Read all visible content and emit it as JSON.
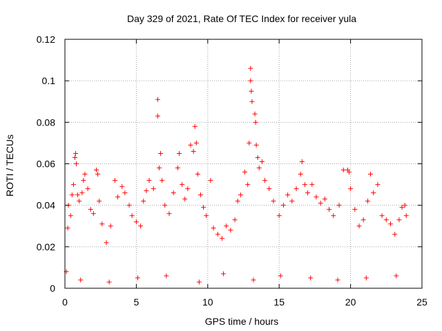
{
  "chart_data": {
    "type": "scatter",
    "title": "Day 329 of 2021, Rate Of TEC Index for receiver yula",
    "xlabel": "GPS time / hours",
    "ylabel": "ROTI / TECUs",
    "xlim": [
      0,
      25
    ],
    "ylim": [
      0,
      0.12
    ],
    "xticks": [
      0,
      5,
      10,
      15,
      20,
      25
    ],
    "yticks": [
      0,
      0.02,
      0.04,
      0.06,
      0.08,
      0.1,
      0.12
    ],
    "xtick_labels": [
      "0",
      "5",
      "10",
      "15",
      "20",
      "25"
    ],
    "ytick_labels": [
      "0",
      "0.02",
      "0.04",
      "0.06",
      "0.08",
      "0.1",
      "0.12"
    ],
    "grid": true,
    "marker": "+",
    "color": "#ff0000",
    "series": [
      {
        "name": "ROTI",
        "points": [
          [
            0.1,
            0.008
          ],
          [
            0.2,
            0.029
          ],
          [
            0.25,
            0.04
          ],
          [
            0.4,
            0.035
          ],
          [
            0.5,
            0.045
          ],
          [
            0.6,
            0.05
          ],
          [
            0.7,
            0.063
          ],
          [
            0.75,
            0.065
          ],
          [
            0.8,
            0.06
          ],
          [
            0.9,
            0.045
          ],
          [
            1.0,
            0.042
          ],
          [
            1.2,
            0.046
          ],
          [
            1.3,
            0.052
          ],
          [
            1.4,
            0.055
          ],
          [
            1.6,
            0.048
          ],
          [
            1.8,
            0.038
          ],
          [
            2.0,
            0.036
          ],
          [
            2.2,
            0.057
          ],
          [
            2.3,
            0.055
          ],
          [
            2.4,
            0.042
          ],
          [
            2.6,
            0.031
          ],
          [
            2.9,
            0.022
          ],
          [
            3.2,
            0.03
          ],
          [
            3.5,
            0.052
          ],
          [
            3.7,
            0.044
          ],
          [
            4.0,
            0.049
          ],
          [
            4.2,
            0.046
          ],
          [
            4.5,
            0.04
          ],
          [
            4.7,
            0.035
          ],
          [
            5.0,
            0.032
          ],
          [
            5.3,
            0.03
          ],
          [
            5.5,
            0.042
          ],
          [
            5.7,
            0.047
          ],
          [
            5.9,
            0.052
          ],
          [
            6.2,
            0.048
          ],
          [
            6.5,
            0.091
          ],
          [
            6.5,
            0.083
          ],
          [
            6.6,
            0.058
          ],
          [
            6.7,
            0.065
          ],
          [
            6.8,
            0.052
          ],
          [
            7.0,
            0.04
          ],
          [
            7.3,
            0.036
          ],
          [
            7.6,
            0.046
          ],
          [
            7.9,
            0.058
          ],
          [
            8.0,
            0.065
          ],
          [
            8.2,
            0.05
          ],
          [
            8.4,
            0.043
          ],
          [
            8.6,
            0.048
          ],
          [
            8.8,
            0.069
          ],
          [
            9.0,
            0.066
          ],
          [
            9.1,
            0.078
          ],
          [
            9.2,
            0.07
          ],
          [
            9.3,
            0.055
          ],
          [
            9.5,
            0.045
          ],
          [
            9.7,
            0.039
          ],
          [
            9.9,
            0.035
          ],
          [
            10.2,
            0.052
          ],
          [
            10.4,
            0.029
          ],
          [
            10.7,
            0.026
          ],
          [
            11.0,
            0.024
          ],
          [
            11.3,
            0.03
          ],
          [
            11.6,
            0.028
          ],
          [
            11.9,
            0.033
          ],
          [
            12.1,
            0.042
          ],
          [
            12.3,
            0.045
          ],
          [
            12.6,
            0.056
          ],
          [
            12.8,
            0.05
          ],
          [
            12.9,
            0.07
          ],
          [
            13.0,
            0.106
          ],
          [
            13.0,
            0.1
          ],
          [
            13.05,
            0.095
          ],
          [
            13.1,
            0.09
          ],
          [
            13.3,
            0.084
          ],
          [
            13.35,
            0.08
          ],
          [
            13.4,
            0.069
          ],
          [
            13.5,
            0.063
          ],
          [
            13.6,
            0.058
          ],
          [
            13.8,
            0.061
          ],
          [
            14.0,
            0.052
          ],
          [
            14.3,
            0.048
          ],
          [
            14.6,
            0.042
          ],
          [
            15.0,
            0.035
          ],
          [
            15.3,
            0.04
          ],
          [
            15.6,
            0.045
          ],
          [
            15.9,
            0.042
          ],
          [
            16.2,
            0.048
          ],
          [
            16.5,
            0.055
          ],
          [
            16.6,
            0.061
          ],
          [
            16.8,
            0.05
          ],
          [
            17.0,
            0.046
          ],
          [
            17.3,
            0.05
          ],
          [
            17.6,
            0.044
          ],
          [
            17.9,
            0.041
          ],
          [
            18.2,
            0.043
          ],
          [
            18.5,
            0.038
          ],
          [
            18.8,
            0.035
          ],
          [
            19.2,
            0.04
          ],
          [
            19.5,
            0.057
          ],
          [
            19.8,
            0.057
          ],
          [
            19.9,
            0.056
          ],
          [
            20.0,
            0.048
          ],
          [
            20.3,
            0.038
          ],
          [
            20.6,
            0.03
          ],
          [
            20.9,
            0.033
          ],
          [
            21.2,
            0.042
          ],
          [
            21.4,
            0.055
          ],
          [
            21.6,
            0.046
          ],
          [
            21.9,
            0.05
          ],
          [
            22.2,
            0.035
          ],
          [
            22.5,
            0.033
          ],
          [
            22.8,
            0.031
          ],
          [
            23.1,
            0.026
          ],
          [
            23.4,
            0.033
          ],
          [
            23.6,
            0.039
          ],
          [
            23.8,
            0.04
          ],
          [
            23.9,
            0.035
          ],
          [
            1.1,
            0.004
          ],
          [
            3.1,
            0.003
          ],
          [
            5.1,
            0.005
          ],
          [
            7.1,
            0.006
          ],
          [
            9.4,
            0.003
          ],
          [
            11.1,
            0.007
          ],
          [
            13.2,
            0.004
          ],
          [
            15.1,
            0.006
          ],
          [
            17.2,
            0.005
          ],
          [
            19.1,
            0.004
          ],
          [
            21.1,
            0.005
          ],
          [
            23.2,
            0.006
          ]
        ]
      }
    ]
  }
}
